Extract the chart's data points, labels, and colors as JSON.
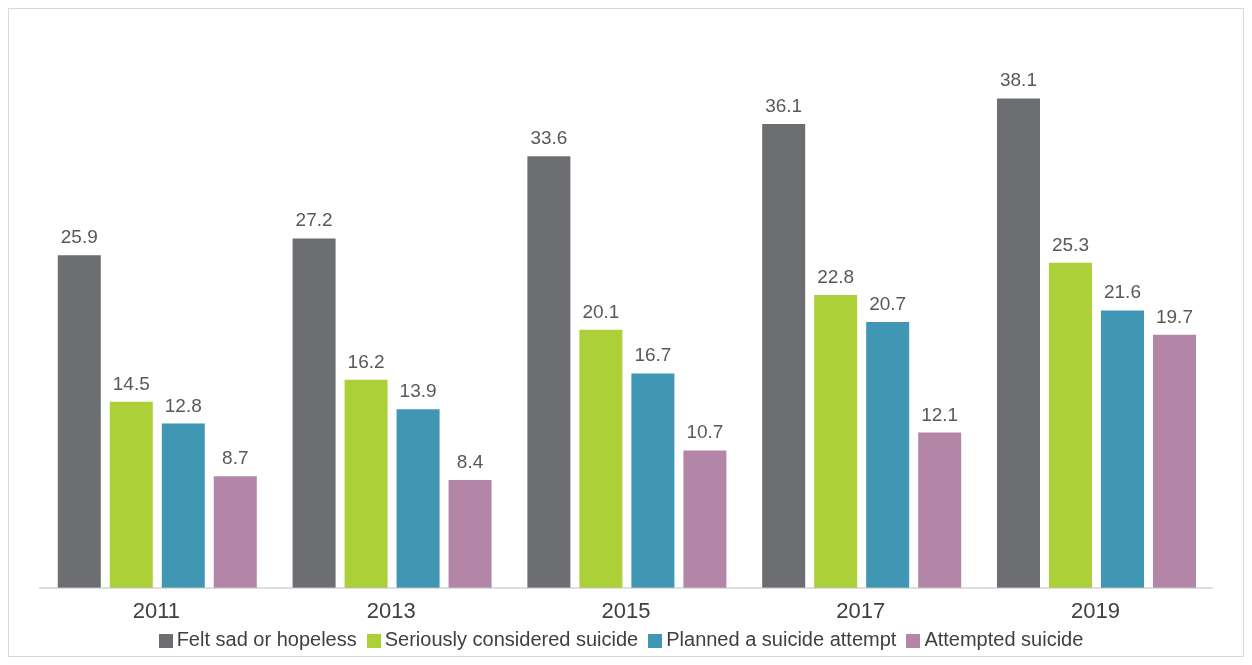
{
  "chart_data": {
    "type": "bar",
    "categories": [
      "2011",
      "2013",
      "2015",
      "2017",
      "2019"
    ],
    "series": [
      {
        "name": "Felt sad or hopeless",
        "color": "#6d6e71",
        "values": [
          25.9,
          27.2,
          33.6,
          36.1,
          38.1
        ]
      },
      {
        "name": "Seriously considered suicide",
        "color": "#acd037",
        "values": [
          14.5,
          16.2,
          20.1,
          22.8,
          25.3
        ]
      },
      {
        "name": "Planned a suicide attempt",
        "color": "#3f97b4",
        "values": [
          12.8,
          13.9,
          16.7,
          20.7,
          21.6
        ]
      },
      {
        "name": "Attempted suicide",
        "color": "#b385a6",
        "values": [
          8.7,
          8.4,
          10.7,
          12.1,
          19.7
        ]
      }
    ],
    "data_labels": true,
    "legend": "bottom",
    "grid": false
  }
}
